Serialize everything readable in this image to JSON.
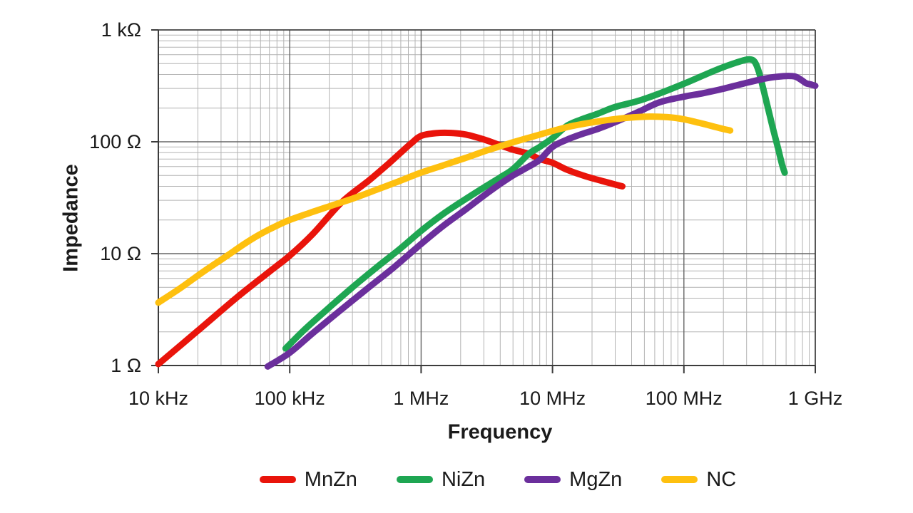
{
  "chart_data": {
    "type": "line",
    "title": "",
    "xlabel": "Frequency",
    "ylabel": "Impedance",
    "x_scale": "log",
    "y_scale": "log",
    "xlim": [
      10000,
      1000000000
    ],
    "ylim": [
      1,
      1000
    ],
    "grid": {
      "major": true,
      "minor": true,
      "minor_color": "#b3b3b3",
      "major_color": "#666666",
      "axis_color": "#3c3c3c"
    },
    "legend_position": "bottom",
    "x_ticks": [
      {
        "label": "10 kHz",
        "value": 10000
      },
      {
        "label": "100 kHz",
        "value": 100000
      },
      {
        "label": "1 MHz",
        "value": 1000000
      },
      {
        "label": "10 MHz",
        "value": 10000000
      },
      {
        "label": "100 MHz",
        "value": 100000000
      },
      {
        "label": "1 GHz",
        "value": 1000000000
      }
    ],
    "y_ticks": [
      {
        "label": "1 Ω",
        "value": 1
      },
      {
        "label": "10 Ω",
        "value": 10
      },
      {
        "label": "100 Ω",
        "value": 100
      },
      {
        "label": "1 kΩ",
        "value": 1000
      }
    ],
    "series": [
      {
        "name": "MnZn",
        "color": "#e9140b",
        "points": [
          [
            10000,
            1.03
          ],
          [
            20000,
            2.05
          ],
          [
            40000,
            4.1
          ],
          [
            70000,
            6.9
          ],
          [
            100000,
            9.6
          ],
          [
            150000,
            15
          ],
          [
            250000,
            29
          ],
          [
            400000,
            45
          ],
          [
            550000,
            62
          ],
          [
            700000,
            80
          ],
          [
            850000,
            98
          ],
          [
            1000000,
            113
          ],
          [
            1300000,
            119.5
          ],
          [
            1700000,
            120
          ],
          [
            2200000,
            116
          ],
          [
            3000000,
            105
          ],
          [
            4000000,
            93
          ],
          [
            5000000,
            85
          ],
          [
            6600000,
            78
          ],
          [
            8000000,
            70
          ],
          [
            10000000,
            65
          ],
          [
            13000000,
            56
          ],
          [
            18000000,
            49
          ],
          [
            25000000,
            44
          ],
          [
            30000000,
            41.5
          ],
          [
            34000000,
            40
          ]
        ]
      },
      {
        "name": "NiZn",
        "color": "#1ea652",
        "points": [
          [
            93000,
            1.42
          ],
          [
            130000,
            2.1
          ],
          [
            200000,
            3.3
          ],
          [
            300000,
            5.0
          ],
          [
            450000,
            7.4
          ],
          [
            700000,
            11.2
          ],
          [
            1000000,
            16
          ],
          [
            1500000,
            23
          ],
          [
            2200000,
            31
          ],
          [
            3000000,
            39
          ],
          [
            4000000,
            48
          ],
          [
            5000000,
            57
          ],
          [
            6600000,
            78
          ],
          [
            8000000,
            90
          ],
          [
            10000000,
            108
          ],
          [
            13000000,
            140
          ],
          [
            17000000,
            160
          ],
          [
            22000000,
            178
          ],
          [
            30000000,
            205
          ],
          [
            45000000,
            232
          ],
          [
            65000000,
            270
          ],
          [
            100000000,
            330
          ],
          [
            150000000,
            405
          ],
          [
            200000000,
            465
          ],
          [
            250000000,
            510
          ],
          [
            290000000,
            538
          ],
          [
            320000000,
            545
          ],
          [
            345000000,
            520
          ],
          [
            370000000,
            430
          ],
          [
            400000000,
            305
          ],
          [
            430000000,
            215
          ],
          [
            470000000,
            140
          ],
          [
            520000000,
            88
          ],
          [
            560000000,
            62
          ],
          [
            585000000,
            53
          ]
        ]
      },
      {
        "name": "MgZn",
        "color": "#6b2f9c",
        "points": [
          [
            68000,
            0.98
          ],
          [
            100000,
            1.3
          ],
          [
            150000,
            1.95
          ],
          [
            250000,
            3.2
          ],
          [
            400000,
            5.0
          ],
          [
            600000,
            7.3
          ],
          [
            1000000,
            12.2
          ],
          [
            1500000,
            18
          ],
          [
            2200000,
            25
          ],
          [
            3000000,
            33
          ],
          [
            4000000,
            42
          ],
          [
            5000000,
            50
          ],
          [
            6600000,
            60
          ],
          [
            8000000,
            69
          ],
          [
            10000000,
            90
          ],
          [
            13000000,
            105
          ],
          [
            17000000,
            118
          ],
          [
            22000000,
            130
          ],
          [
            30000000,
            150
          ],
          [
            45000000,
            185
          ],
          [
            65000000,
            225
          ],
          [
            100000000,
            253
          ],
          [
            140000000,
            272
          ],
          [
            200000000,
            298
          ],
          [
            280000000,
            330
          ],
          [
            380000000,
            360
          ],
          [
            480000000,
            378
          ],
          [
            600000000,
            387
          ],
          [
            700000000,
            383
          ],
          [
            780000000,
            358
          ],
          [
            850000000,
            334
          ],
          [
            920000000,
            326
          ],
          [
            1000000000,
            316
          ]
        ]
      },
      {
        "name": "NC",
        "color": "#fec00f",
        "points": [
          [
            10000,
            3.65
          ],
          [
            15000,
            5.0
          ],
          [
            22000,
            6.9
          ],
          [
            33000,
            9.5
          ],
          [
            47000,
            12.6
          ],
          [
            60000,
            15
          ],
          [
            80000,
            17.8
          ],
          [
            100000,
            20
          ],
          [
            140000,
            23
          ],
          [
            200000,
            26.5
          ],
          [
            300000,
            31
          ],
          [
            450000,
            37
          ],
          [
            700000,
            45
          ],
          [
            1000000,
            53
          ],
          [
            1500000,
            62
          ],
          [
            2200000,
            72
          ],
          [
            3200000,
            84
          ],
          [
            5000000,
            99
          ],
          [
            7000000,
            111
          ],
          [
            10000000,
            125
          ],
          [
            14000000,
            138
          ],
          [
            20000000,
            149
          ],
          [
            28000000,
            158
          ],
          [
            40000000,
            165
          ],
          [
            55000000,
            168
          ],
          [
            75000000,
            166
          ],
          [
            100000000,
            159
          ],
          [
            130000000,
            148
          ],
          [
            160000000,
            139
          ],
          [
            200000000,
            130
          ],
          [
            225000000,
            126
          ]
        ]
      }
    ]
  },
  "layout_text": {
    "xlabel": "Frequency",
    "ylabel": "Impedance"
  }
}
